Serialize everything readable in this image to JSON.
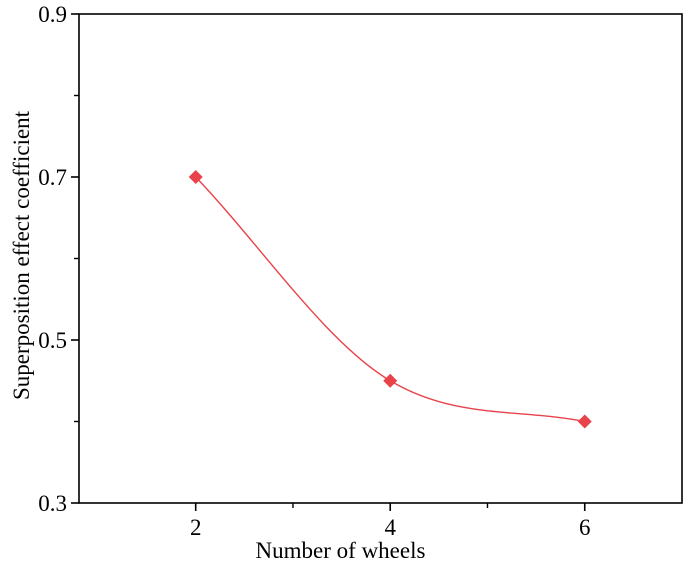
{
  "chart_data": {
    "type": "line",
    "x": [
      2,
      4,
      6
    ],
    "series": [
      {
        "values": [
          0.7,
          0.45,
          0.4
        ],
        "color": "#e8434a",
        "marker": "diamond",
        "smooth": true
      }
    ],
    "xlabel": "Number of wheels",
    "ylabel": "Superposition effect coefficient",
    "xlim": [
      0.8,
      7.0
    ],
    "ylim": [
      0.3,
      0.9
    ],
    "xticks": [
      2,
      4,
      6
    ],
    "yticks": [
      0.3,
      0.5,
      0.7,
      0.9
    ],
    "ytick_labels": [
      "0.3",
      "0.5",
      "0.7",
      "0.9"
    ],
    "grid": false,
    "legend": "none"
  }
}
